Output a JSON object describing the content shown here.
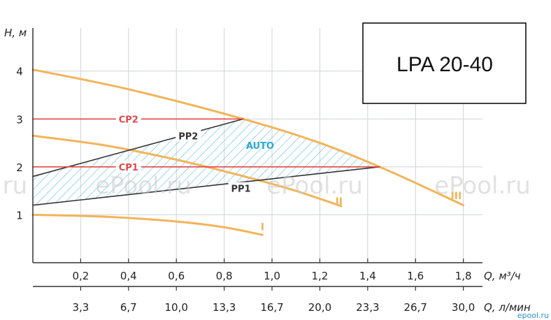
{
  "chart_data": {
    "type": "line",
    "title": "LPA 20-40",
    "ylabel": "H, м",
    "xlabel": "Q, м³/ч",
    "xlabel2": "Q, л/мин",
    "xlim": [
      0,
      1.88
    ],
    "ylim": [
      0,
      4.9
    ],
    "x_ticks": [
      "0,2",
      "0,4",
      "0,6",
      "0,8",
      "1,0",
      "1,2",
      "1,4",
      "1,6",
      "1,8"
    ],
    "x_ticks_values": [
      0.2,
      0.4,
      0.6,
      0.8,
      1.0,
      1.2,
      1.4,
      1.6,
      1.8
    ],
    "x2_ticks": [
      "3,3",
      "6,7",
      "10,0",
      "13,3",
      "16,7",
      "20,0",
      "23,3",
      "26,7",
      "30,0"
    ],
    "y_ticks": [
      "1",
      "2",
      "3",
      "4"
    ],
    "y_ticks_values": [
      1,
      2,
      3,
      4
    ],
    "grid": true,
    "series": [
      {
        "name": "I",
        "color": "#f2b45a",
        "x": [
          0,
          0.3,
          0.6,
          0.8,
          0.96
        ],
        "y": [
          1.0,
          0.96,
          0.86,
          0.74,
          0.58
        ]
      },
      {
        "name": "II",
        "color": "#f2b45a",
        "x": [
          0,
          0.3,
          0.6,
          0.9,
          1.1,
          1.29
        ],
        "y": [
          2.65,
          2.45,
          2.15,
          1.78,
          1.5,
          1.18
        ]
      },
      {
        "name": "III",
        "color": "#f2b45a",
        "x": [
          0,
          0.4,
          0.88,
          1.2,
          1.45,
          1.65,
          1.8
        ],
        "y": [
          4.03,
          3.62,
          3.0,
          2.5,
          2.0,
          1.55,
          1.2
        ]
      },
      {
        "name": "PP2",
        "color": "#333333",
        "x": [
          0,
          0.88
        ],
        "y": [
          1.8,
          3.0
        ]
      },
      {
        "name": "PP1",
        "color": "#333333",
        "x": [
          0,
          1.45
        ],
        "y": [
          1.2,
          2.0
        ]
      },
      {
        "name": "CP2",
        "color": "#e04848",
        "x": [
          0,
          0.88
        ],
        "y": [
          3.0,
          3.0
        ]
      },
      {
        "name": "CP1",
        "color": "#e04848",
        "x": [
          0,
          1.45
        ],
        "y": [
          2.0,
          2.0
        ]
      }
    ],
    "annotations": {
      "auto_label": "AUTO",
      "auto_color": "#29a9d6",
      "auto_region": {
        "lower": [
          [
            0,
            1.2
          ],
          [
            1.45,
            2.0
          ]
        ],
        "upper": [
          [
            0,
            1.8
          ],
          [
            0.88,
            3.0
          ]
        ],
        "edge": [
          [
            0.88,
            3.0
          ],
          [
            1.2,
            2.5
          ],
          [
            1.45,
            2.0
          ]
        ]
      }
    },
    "watermarks": [
      ".ru",
      "ePool.ru",
      "ePool.ru",
      "ePool.ru"
    ],
    "corner_mark": "epool.ru"
  }
}
